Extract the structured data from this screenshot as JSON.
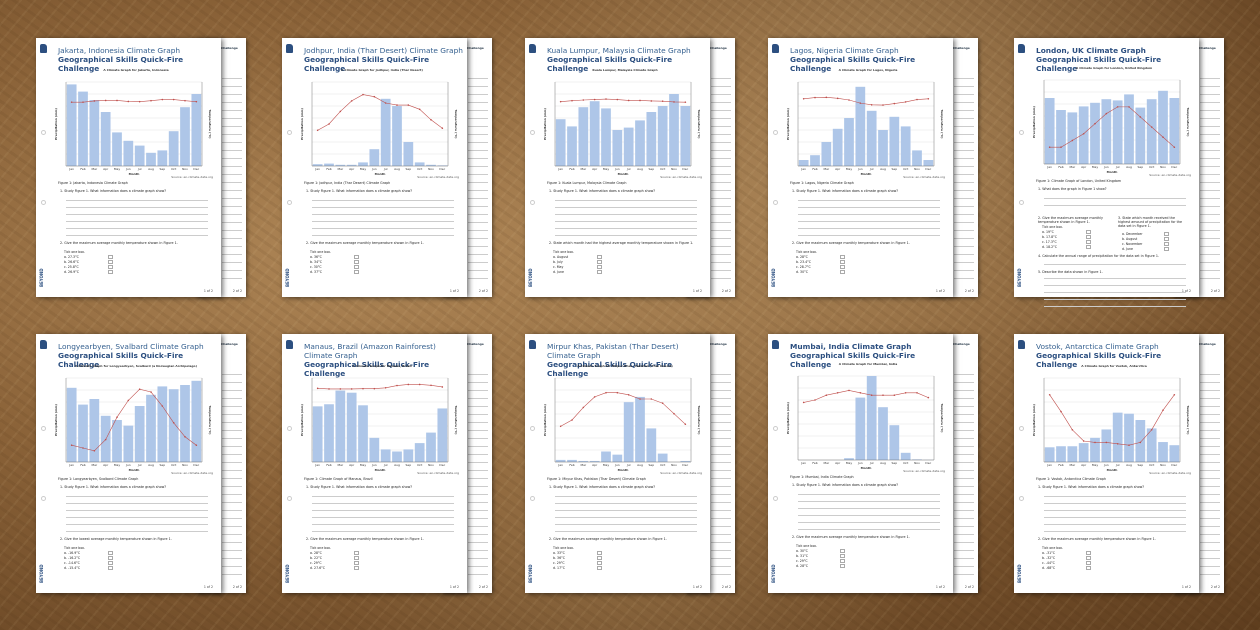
{
  "months": [
    "Jan",
    "Feb",
    "Mar",
    "Apr",
    "May",
    "Jun",
    "Jul",
    "Aug",
    "Sep",
    "Oct",
    "Nov",
    "Dec"
  ],
  "common": {
    "subtitle": "Geographical Skills Quick-Fire Challenge",
    "xlabel": "Month",
    "ylabel_left": "Precipitation (mm)",
    "ylabel_right": "Temperature (°C)",
    "source": "Source: en.climate-data.org",
    "brand": "BEYOND",
    "page1": "1 of 2",
    "page2": "2 of 2",
    "back_title": "Challenge",
    "back_fig": "Figure 1",
    "tick_one": "Tick one box.",
    "bar_color": "#aec6e8",
    "line_color": "#c0504d"
  },
  "sheets": [
    {
      "title": "Jakarta, Indonesia Climate Graph",
      "chart_title": "A Climate Graph for Jakarta, Indonesia",
      "caption": "Figure 1: Jakarta, Indonesia Climate Graph",
      "precip": [
        340,
        310,
        275,
        225,
        140,
        105,
        85,
        55,
        65,
        145,
        245,
        300
      ],
      "pmax": 350,
      "temp": [
        26.6,
        26.6,
        27.1,
        27.3,
        27.3,
        26.9,
        26.8,
        27.2,
        27.7,
        27.7,
        27.2,
        26.8
      ],
      "tmin": 0,
      "tmax": 35,
      "q1": "1. Study Figure 1. What information does a climate graph show?",
      "q2": "2. Give the maximum average monthly temperature shown in Figure 1.",
      "options": [
        "a. 27.3°C",
        "b. 26.6°C",
        "c. 25.8°C",
        "d. 26.9°C"
      ]
    },
    {
      "title": "Jodhpur, India (Thar Desert) Climate Graph",
      "chart_title": "A Climate Graph for Jodhpur, India (Thar Desert)",
      "caption": "Figure 1: Jodhpur, India (Thar Desert) Climate Graph",
      "precip": [
        3,
        4,
        2,
        2,
        6,
        28,
        112,
        100,
        40,
        6,
        2,
        1
      ],
      "pmax": 140,
      "temp": [
        17,
        20,
        26,
        31,
        34,
        33,
        30,
        29,
        29,
        27,
        22,
        18
      ],
      "tmin": 0,
      "tmax": 40,
      "q1": "1. Study Figure 1. What information does a climate graph show?",
      "q2": "2. Give the maximum average monthly temperature shown in Figure 1.",
      "options": [
        "a. 36°C",
        "b. 34°C",
        "c. 30°C",
        "d. 37°C"
      ]
    },
    {
      "title": "Kuala Lumpur, Malaysia Climate Graph",
      "chart_title": "Kuala Lumpur, Malaysia Climate Graph",
      "caption": "Figure 1: Kuala Lumpur, Malaysia Climate Graph",
      "precip": [
        195,
        165,
        245,
        270,
        240,
        150,
        160,
        190,
        225,
        250,
        300,
        250
      ],
      "pmax": 350,
      "temp": [
        26.8,
        27.2,
        27.5,
        27.7,
        27.9,
        27.7,
        27.3,
        27.3,
        27.1,
        27.0,
        26.7,
        26.6
      ],
      "tmin": 0,
      "tmax": 35,
      "q1": "1. Study Figure 1. What information does a climate graph show?",
      "q2": "2. State which month had the highest average monthly temperature shown in Figure 1.",
      "options": [
        "a. August",
        "b. July",
        "c. May",
        "d. June"
      ]
    },
    {
      "title": "Lagos, Nigeria Climate Graph",
      "chart_title": "A Climate Graph for Lagos, Nigeria",
      "caption": "Figure 1: Lagos, Nigeria Climate Graph",
      "precip": [
        25,
        45,
        100,
        155,
        200,
        330,
        230,
        150,
        205,
        165,
        65,
        25
      ],
      "pmax": 350,
      "temp": [
        28,
        28.5,
        28.6,
        28.2,
        27.5,
        26.2,
        25.5,
        25.4,
        26,
        26.7,
        27.7,
        28
      ],
      "tmin": 0,
      "tmax": 35,
      "q1": "1. Study Figure 1. What information does a climate graph show?",
      "q2": "2. Give the maximum average monthly temperature shown in Figure 1.",
      "options": [
        "a. 28°C",
        "b. 23.4°C",
        "c. 28.7°C",
        "d. 30°C"
      ]
    },
    {
      "title": "London, UK Climate Graph Geographical Skills Quick-Fire Challenge",
      "nosub": true,
      "chart_title": "A Climate Graph for London, United Kingdom",
      "caption": "Figure 1: Climate Graph of London, United Kingdom",
      "precip": [
        55,
        45,
        43,
        48,
        51,
        54,
        53,
        58,
        47,
        54,
        61,
        55
      ],
      "pmax": 70,
      "temp": [
        5,
        5,
        7,
        9,
        12,
        15,
        17,
        17,
        14,
        11,
        8,
        5
      ],
      "tmin": 0,
      "tmax": 25,
      "q1": "1. What does the graph in Figure 1 show?",
      "q2": "2. Give the maximum average monthly temperature shown in Figure 1.",
      "options": [
        "a. 19°C",
        "b. 17.8°C",
        "c. 17.3°C",
        "d. 18.2°C"
      ],
      "q3": "3. State which month received the highest amount of precipitation for the data set in Figure 1.",
      "options3": [
        "a. December",
        "b. August",
        "c. November",
        "d. June"
      ],
      "q4": "4. Calculate the annual range of precipitation for the data set in Figure 1.",
      "q5": "5. Describe the data shown in Figure 1."
    },
    {
      "title": "Longyearbyen, Svalbard Climate Graph",
      "chart_title": "A Climate Graph for Longyearbyen, Svalbard (a Norwegian Archipelago)",
      "caption": "Figure 1: Longyearbyen, Svalbard Climate Graph",
      "precip": [
        53,
        41,
        45,
        33,
        30,
        26,
        40,
        48,
        54,
        52,
        55,
        58
      ],
      "pmax": 60,
      "temp": [
        -14,
        -15,
        -16,
        -12,
        -4,
        2,
        6,
        5,
        0,
        -6,
        -11,
        -14
      ],
      "tmin": -20,
      "tmax": 10,
      "q1": "1. Study Figure 1. What information does a climate graph show?",
      "q2": "2. Give the lowest average monthly temperature shown in Figure 1.",
      "options": [
        "a. -16.9°C",
        "b. -16.2°C",
        "c. -14.6°C",
        "d. -15.4°C"
      ]
    },
    {
      "title": "Manaus, Brazil (Amazon Rainforest) Climate Graph",
      "chart_title": "A Climate Graph for Manaus, Brazil",
      "caption": "Figure 1: Climate Graph of Manaus, Brazil",
      "precip": [
        265,
        275,
        340,
        330,
        270,
        115,
        60,
        50,
        60,
        90,
        140,
        255
      ],
      "pmax": 400,
      "temp": [
        26.3,
        26.1,
        26.1,
        26.1,
        26.2,
        26.2,
        26.5,
        27.3,
        27.7,
        27.7,
        27.4,
        26.8
      ],
      "tmin": 0,
      "tmax": 30,
      "q1": "1. Study Figure 1. What information does a climate graph show?",
      "q2": "2. Give the maximum average monthly temperature shown in Figure 1.",
      "options": [
        "a. 28°C",
        "b. 22°C",
        "c. 29°C",
        "d. 27.6°C"
      ]
    },
    {
      "title": "Mirpur Khas, Pakistan (Thar Desert) Climate Graph",
      "chart_title": "A Climate Graph for Mirpur Khas, Pakistan (Thar Desert)",
      "caption": "Figure 1: Mirpur Khas, Pakistan (Thar Desert) Climate Graph",
      "precip": [
        2,
        2,
        1,
        1,
        10,
        7,
        57,
        62,
        32,
        8,
        0,
        1
      ],
      "pmax": 80,
      "temp": [
        17,
        20,
        26,
        31,
        33,
        33,
        32,
        30,
        30,
        28,
        23,
        18
      ],
      "tmin": 0,
      "tmax": 40,
      "q1": "1. Study Figure 1. What information does a climate graph show?",
      "q2": "2. Give the maximum average monthly temperature shown in Figure 1.",
      "options": [
        "a. 33°C",
        "b. 36°C",
        "c. 29°C",
        "d. 17°C"
      ]
    },
    {
      "title": "Mumbai, India Climate Graph Geographical Skills Quick-Fire Challenge",
      "nosub": true,
      "chart_title": "A Climate Graph for Mumbai, India",
      "caption": "Figure 1: Mumbai, India Climate Graph",
      "precip": [
        0,
        0,
        0,
        0,
        15,
        520,
        700,
        440,
        290,
        60,
        5,
        1
      ],
      "pmax": 700,
      "temp": [
        24,
        25,
        27,
        28,
        29,
        28,
        27,
        27,
        27,
        28,
        28,
        26
      ],
      "tmin": 0,
      "tmax": 35,
      "q1": "1. Study Figure 1. What information does a climate graph show?",
      "q2": "2. Give the maximum average monthly temperature shown in Figure 1.",
      "options": [
        "a. 30°C",
        "b. 31°C",
        "c. 29°C",
        "d. 28°C"
      ]
    },
    {
      "title": "Vostok, Antarctica Climate Graph",
      "chart_title": "A Climate Graph for Vostok, Antarctica",
      "caption": "Figure 1: Vostok, Antarctica Climate Graph",
      "precip": [
        14,
        15,
        15,
        18,
        23,
        31,
        47,
        46,
        40,
        32,
        19,
        16
      ],
      "pmax": 80,
      "temp": [
        -32,
        -44,
        -57,
        -65,
        -66,
        -66,
        -67,
        -68,
        -66,
        -57,
        -43,
        -32
      ],
      "tmin": -80,
      "tmax": -20,
      "q1": "1. Study Figure 1. What information does a climate graph show?",
      "q2": "2. Give the maximum average monthly temperature shown in Figure 1.",
      "options": [
        "a. -31°C",
        "b. -32°C",
        "c. -44°C",
        "d. -68°C"
      ]
    }
  ]
}
